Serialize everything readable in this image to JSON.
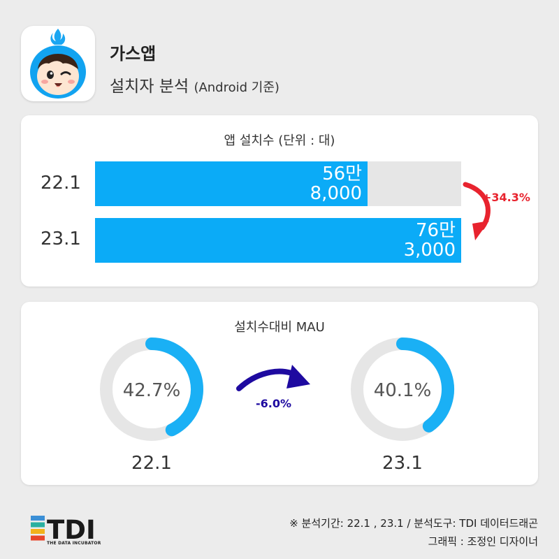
{
  "header": {
    "app_name": "가스앱",
    "subtitle_main": "설치자 분석",
    "subtitle_note": "(Android 기준)"
  },
  "installs": {
    "title": "앱 설치수 (단위 : 대)",
    "change": "+34.3%",
    "change_color": "#e8232e",
    "bar_color": "#0babf7",
    "rows": [
      {
        "label": "22.1",
        "line1": "56만",
        "line2": "8,000"
      },
      {
        "label": "23.1",
        "line1": "76만",
        "line2": "3,000"
      }
    ]
  },
  "mau": {
    "title": "설치수대비 MAU",
    "change": "-6.0%",
    "change_color": "#1e0aa0",
    "items": [
      {
        "label": "22.1",
        "value_text": "42.7%"
      },
      {
        "label": "23.1",
        "value_text": "40.1%"
      }
    ]
  },
  "chart_data": [
    {
      "type": "bar",
      "title": "앱 설치수 (단위 : 대)",
      "categories": [
        "22.1",
        "23.1"
      ],
      "values": [
        568000,
        763000
      ],
      "xlim": [
        0,
        763000
      ],
      "annotation": "+34.3%"
    },
    {
      "type": "pie",
      "title": "설치수대비 MAU",
      "categories": [
        "22.1",
        "23.1"
      ],
      "values": [
        42.7,
        40.1
      ],
      "unit": "%",
      "annotation": "-6.0%"
    }
  ],
  "footer": {
    "line1": "※ 분석기간: 22.1 , 23.1 / 분석도구: TDI 데이터드래곤",
    "line2": "그래픽 : 조정인 디자이너"
  },
  "logo": {
    "text": "TDI",
    "tagline": "THE DATA INCUBATOR",
    "stripe_colors": [
      "#3b8fd6",
      "#2ab0a0",
      "#f2b21b",
      "#e8462a"
    ]
  }
}
